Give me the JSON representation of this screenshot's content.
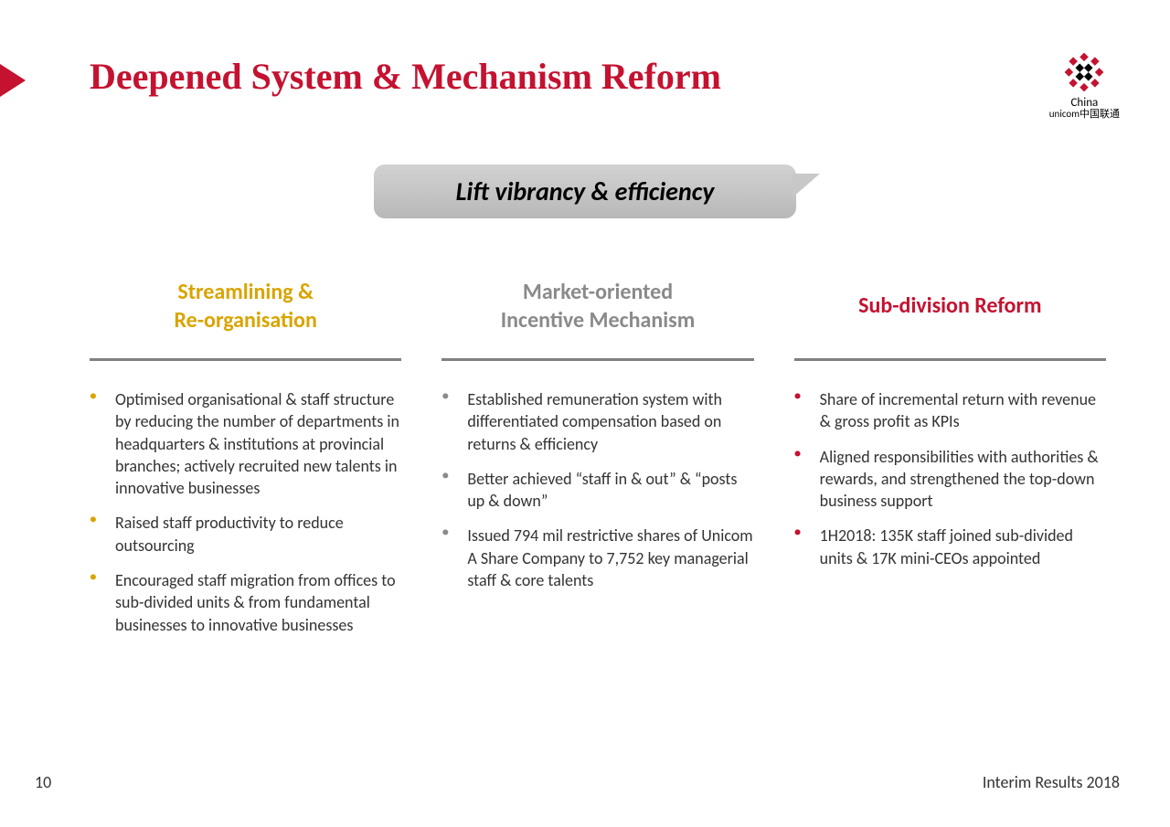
{
  "title": "Deepened System & Mechanism Reform",
  "banner": "Lift vibrancy & efficiency",
  "colors": {
    "brand_red": "#c41230",
    "gold": "#d9a400",
    "grey_head": "#8a8a8a",
    "bullet_gold": "#d9a400",
    "bullet_grey": "#8a8a8a",
    "bullet_red": "#c41230",
    "banner_bg": "#c0c0c0",
    "rule": "#808080",
    "text": "#333333",
    "background": "#ffffff"
  },
  "typography": {
    "title_font": "Times New Roman",
    "body_font": "Calibri",
    "title_size_pt": 30,
    "heading_size_pt": 18,
    "body_size_pt": 13
  },
  "logo": {
    "brand_top": "China",
    "brand_bottom": "unicom中国联通",
    "knot_outer": "#c41230",
    "knot_inner": "#000000"
  },
  "columns": [
    {
      "heading": "Streamlining &\nRe-organisation",
      "heading_color": "#d9a400",
      "bullet_color": "#d9a400",
      "items": [
        "Optimised organisational & staff structure by reducing the number of departments in headquarters & institutions at provincial branches; actively recruited new talents in innovative businesses",
        "Raised staff productivity to reduce outsourcing",
        "Encouraged staff migration from offices to sub-divided units & from fundamental businesses to innovative businesses"
      ]
    },
    {
      "heading": "Market-oriented\nIncentive Mechanism",
      "heading_color": "#8a8a8a",
      "bullet_color": "#8a8a8a",
      "items": [
        "Established remuneration system with differentiated compensation based on returns & efficiency",
        "Better achieved “staff in & out” & “posts up & down”",
        "Issued 794 mil restrictive shares of Unicom A Share Company to 7,752 key managerial staff & core talents"
      ]
    },
    {
      "heading": "Sub-division Reform",
      "heading_color": "#c41230",
      "bullet_color": "#c41230",
      "items": [
        "Share of incremental return with revenue & gross profit as KPIs",
        "Aligned responsibilities with authorities & rewards, and strengthened the top-down business support",
        "1H2018: 135K staff joined sub-divided units & 17K mini-CEOs appointed"
      ]
    }
  ],
  "page_number": "10",
  "footer": "Interim Results 2018"
}
